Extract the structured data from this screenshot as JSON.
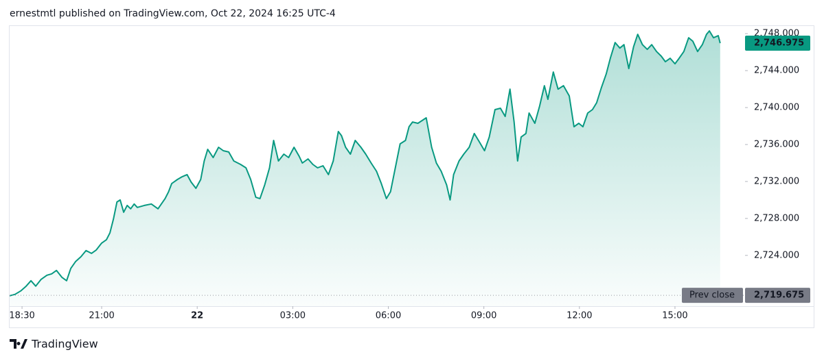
{
  "header": "ernestmtl published on TradingView.com, Oct 22, 2024 16:25 UTC-4",
  "footer": "TradingView",
  "chart_data": {
    "type": "area",
    "color": "#089981",
    "x": [
      18.11,
      18.28,
      18.46,
      18.63,
      18.78,
      18.93,
      19.1,
      19.28,
      19.43,
      19.58,
      19.75,
      19.9,
      20.03,
      20.18,
      20.35,
      20.51,
      20.68,
      20.83,
      21.0,
      21.15,
      21.26,
      21.37,
      21.48,
      21.58,
      21.69,
      21.8,
      21.91,
      22.02,
      22.12,
      22.34,
      22.56,
      22.77,
      22.99,
      23.1,
      23.2,
      23.38,
      23.53,
      23.68,
      23.81,
      23.96,
      24.11,
      24.22,
      24.33,
      24.5,
      24.67,
      24.82,
      24.99,
      25.15,
      25.36,
      25.53,
      25.68,
      25.84,
      25.97,
      26.12,
      26.27,
      26.4,
      26.55,
      26.72,
      26.87,
      27.04,
      27.2,
      27.3,
      27.48,
      27.63,
      27.78,
      27.95,
      28.12,
      28.27,
      28.43,
      28.53,
      28.66,
      28.81,
      28.96,
      29.14,
      29.29,
      29.46,
      29.63,
      29.78,
      29.94,
      30.07,
      30.22,
      30.37,
      30.54,
      30.65,
      30.76,
      30.93,
      31.19,
      31.36,
      31.51,
      31.66,
      31.83,
      31.94,
      32.05,
      32.22,
      32.37,
      32.54,
      32.7,
      32.87,
      33.02,
      33.17,
      33.35,
      33.52,
      33.67,
      33.82,
      33.95,
      34.06,
      34.17,
      34.32,
      34.42,
      34.6,
      34.75,
      34.9,
      35.01,
      35.18,
      35.33,
      35.5,
      35.68,
      35.83,
      35.98,
      36.11,
      36.26,
      36.41,
      36.54,
      36.69,
      36.84,
      36.97,
      37.12,
      37.27,
      37.4,
      37.55,
      37.7,
      37.83,
      37.98,
      38.13,
      38.27,
      38.42,
      38.57,
      38.7,
      38.85,
      39.0,
      39.13,
      39.28,
      39.43,
      39.56,
      39.71,
      39.86,
      39.99,
      40.08,
      40.21,
      40.36,
      40.42
    ],
    "values": [
      2719.63,
      2719.78,
      2720.15,
      2720.67,
      2721.26,
      2720.67,
      2721.41,
      2721.85,
      2722.0,
      2722.37,
      2721.63,
      2721.26,
      2722.59,
      2723.33,
      2723.85,
      2724.52,
      2724.22,
      2724.59,
      2725.33,
      2725.7,
      2726.44,
      2727.93,
      2729.78,
      2730.0,
      2728.67,
      2729.41,
      2729.04,
      2729.56,
      2729.19,
      2729.41,
      2729.56,
      2729.04,
      2730.15,
      2730.89,
      2731.78,
      2732.22,
      2732.52,
      2732.74,
      2731.93,
      2731.26,
      2732.22,
      2734.22,
      2735.48,
      2734.59,
      2735.7,
      2735.33,
      2735.19,
      2734.22,
      2733.85,
      2733.48,
      2732.22,
      2730.3,
      2730.15,
      2731.63,
      2733.48,
      2736.44,
      2734.22,
      2734.96,
      2734.59,
      2735.7,
      2734.74,
      2734.0,
      2734.44,
      2733.85,
      2733.48,
      2733.7,
      2732.74,
      2734.22,
      2737.41,
      2736.96,
      2735.7,
      2734.96,
      2736.44,
      2735.7,
      2734.96,
      2734.0,
      2733.11,
      2731.78,
      2730.15,
      2730.89,
      2733.48,
      2736.07,
      2736.44,
      2737.93,
      2738.44,
      2738.3,
      2738.89,
      2735.7,
      2734.0,
      2733.11,
      2731.63,
      2730.0,
      2732.74,
      2734.22,
      2734.96,
      2735.7,
      2737.19,
      2736.22,
      2735.33,
      2736.81,
      2739.78,
      2739.93,
      2739.04,
      2742.0,
      2738.44,
      2734.22,
      2736.81,
      2737.19,
      2739.41,
      2738.3,
      2740.15,
      2742.37,
      2740.89,
      2743.85,
      2742.0,
      2742.37,
      2741.26,
      2737.93,
      2738.3,
      2737.93,
      2739.41,
      2739.78,
      2740.52,
      2742.15,
      2743.63,
      2745.33,
      2747.04,
      2746.44,
      2746.81,
      2744.22,
      2746.59,
      2747.93,
      2746.81,
      2746.3,
      2746.81,
      2746.07,
      2745.56,
      2744.96,
      2745.33,
      2744.74,
      2745.33,
      2746.07,
      2747.56,
      2747.19,
      2746.07,
      2746.81,
      2747.93,
      2748.3,
      2747.56,
      2747.78,
      2746.975
    ],
    "last_price_label": "2,746.975",
    "prev_close": {
      "name": "Prev close",
      "value": 2719.675,
      "label": "2,719.675"
    },
    "xlim": [
      18.11,
      41.2
    ],
    "xticks": [
      {
        "value": 18.5,
        "label": "18:30"
      },
      {
        "value": 21,
        "label": "21:00"
      },
      {
        "value": 24,
        "label": "22"
      },
      {
        "value": 27,
        "label": "03:00"
      },
      {
        "value": 30,
        "label": "06:00"
      },
      {
        "value": 33,
        "label": "09:00"
      },
      {
        "value": 36,
        "label": "12:00"
      },
      {
        "value": 39,
        "label": "15:00"
      }
    ],
    "ylim": [
      2718.5,
      2748.9
    ],
    "yticks": [
      {
        "value": 2724,
        "label": "2,724.000"
      },
      {
        "value": 2728,
        "label": "2,728.000"
      },
      {
        "value": 2732,
        "label": "2,732.000"
      },
      {
        "value": 2736,
        "label": "2,736.000"
      },
      {
        "value": 2740,
        "label": "2,740.000"
      },
      {
        "value": 2744,
        "label": "2,744.000"
      },
      {
        "value": 2748,
        "label": "2,748.000"
      }
    ]
  }
}
